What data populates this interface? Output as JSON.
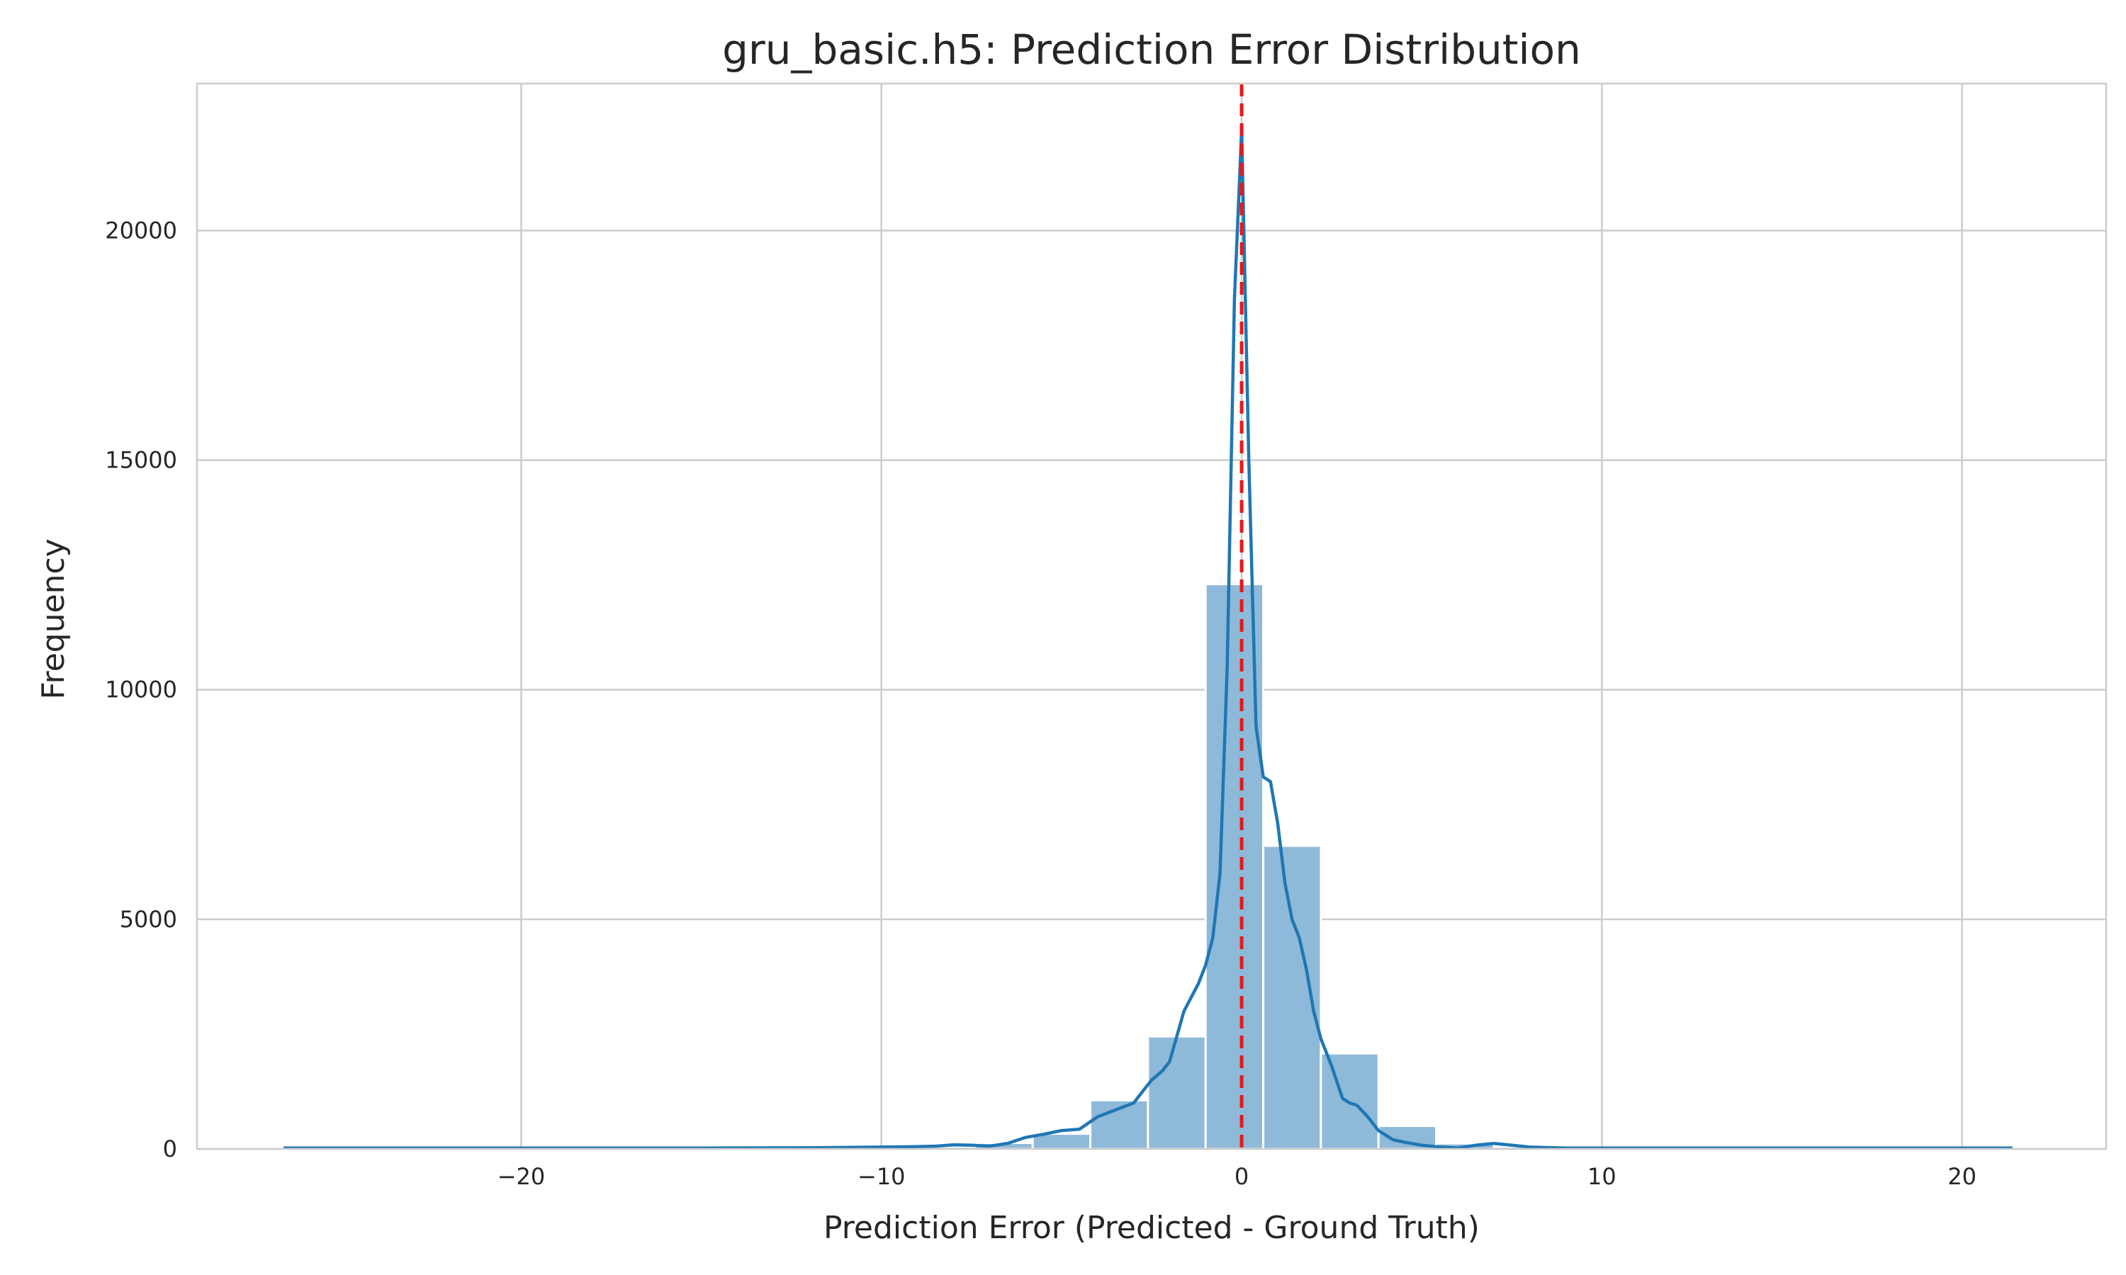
{
  "chart_data": {
    "type": "bar",
    "title": "gru_basic.h5: Prediction Error Distribution",
    "xlabel": "Prediction Error (Predicted - Ground Truth)",
    "ylabel": "Frequency",
    "xlim": [
      -29,
      24
    ],
    "ylim": [
      0,
      23200
    ],
    "grid": true,
    "xticks": [
      {
        "value": -20,
        "label": "−20"
      },
      {
        "value": -10,
        "label": "−10"
      },
      {
        "value": 0,
        "label": "0"
      },
      {
        "value": 10,
        "label": "10"
      },
      {
        "value": 20,
        "label": "20"
      }
    ],
    "yticks": [
      {
        "value": 0,
        "label": "0"
      },
      {
        "value": 5000,
        "label": "5000"
      },
      {
        "value": 10000,
        "label": "10000"
      },
      {
        "value": 15000,
        "label": "15000"
      },
      {
        "value": 20000,
        "label": "20000"
      }
    ],
    "bins": [
      {
        "x0": -26.6,
        "x1": -25.0,
        "count": 3
      },
      {
        "x0": -25.0,
        "x1": -23.4,
        "count": 3
      },
      {
        "x0": -23.4,
        "x1": -21.8,
        "count": 3
      },
      {
        "x0": -21.8,
        "x1": -20.2,
        "count": 4
      },
      {
        "x0": -20.2,
        "x1": -18.6,
        "count": 4
      },
      {
        "x0": -18.6,
        "x1": -17.0,
        "count": 5
      },
      {
        "x0": -17.0,
        "x1": -15.4,
        "count": 6
      },
      {
        "x0": -15.4,
        "x1": -13.8,
        "count": 8
      },
      {
        "x0": -13.8,
        "x1": -12.2,
        "count": 10
      },
      {
        "x0": -12.2,
        "x1": -10.6,
        "count": 15
      },
      {
        "x0": -10.6,
        "x1": -9.0,
        "count": 25
      },
      {
        "x0": -9.0,
        "x1": -7.4,
        "count": 50
      },
      {
        "x0": -7.4,
        "x1": -5.8,
        "count": 130
      },
      {
        "x0": -5.8,
        "x1": -4.2,
        "count": 330
      },
      {
        "x0": -4.2,
        "x1": -2.6,
        "count": 1060
      },
      {
        "x0": -2.6,
        "x1": -1.0,
        "count": 2450
      },
      {
        "x0": -1.0,
        "x1": 0.6,
        "count": 12300
      },
      {
        "x0": 0.6,
        "x1": 2.2,
        "count": 6600
      },
      {
        "x0": 2.2,
        "x1": 3.8,
        "count": 2080
      },
      {
        "x0": 3.8,
        "x1": 5.4,
        "count": 500
      },
      {
        "x0": 5.4,
        "x1": 7.0,
        "count": 120
      },
      {
        "x0": 7.0,
        "x1": 8.6,
        "count": 50
      },
      {
        "x0": 8.6,
        "x1": 10.2,
        "count": 20
      },
      {
        "x0": 10.2,
        "x1": 11.8,
        "count": 12
      },
      {
        "x0": 11.8,
        "x1": 13.4,
        "count": 8
      },
      {
        "x0": 13.4,
        "x1": 15.0,
        "count": 6
      },
      {
        "x0": 15.0,
        "x1": 16.6,
        "count": 5
      },
      {
        "x0": 16.6,
        "x1": 18.2,
        "count": 4
      },
      {
        "x0": 18.2,
        "x1": 19.8,
        "count": 4
      },
      {
        "x0": 19.8,
        "x1": 21.4,
        "count": 3
      }
    ],
    "kde": {
      "x": [
        -26.6,
        -20,
        -15,
        -12,
        -10,
        -9,
        -8.5,
        -8,
        -7.5,
        -7,
        -6.5,
        -6,
        -5.5,
        -5,
        -4.5,
        -4,
        -3.5,
        -3,
        -2.7,
        -2.5,
        -2.2,
        -2,
        -1.6,
        -1.2,
        -1,
        -0.8,
        -0.6,
        -0.4,
        -0.2,
        0,
        0.2,
        0.4,
        0.6,
        0.8,
        1.0,
        1.2,
        1.4,
        1.6,
        1.8,
        2.0,
        2.2,
        2.5,
        2.8,
        3.0,
        3.2,
        3.5,
        3.8,
        4.0,
        4.2,
        4.5,
        5.0,
        5.5,
        6.0,
        6.5,
        7.0,
        7.5,
        8.0,
        8.5,
        9.0,
        10,
        12,
        15,
        18,
        21.4
      ],
      "y": [
        20,
        20,
        20,
        25,
        40,
        50,
        60,
        90,
        80,
        60,
        120,
        250,
        320,
        400,
        430,
        700,
        850,
        1000,
        1300,
        1500,
        1700,
        1900,
        3000,
        3600,
        4000,
        4600,
        6000,
        10500,
        18500,
        22200,
        15000,
        9200,
        8100,
        8000,
        7100,
        5800,
        5000,
        4600,
        3900,
        3000,
        2400,
        1800,
        1100,
        1000,
        950,
        700,
        400,
        300,
        200,
        150,
        80,
        40,
        20,
        80,
        120,
        80,
        40,
        30,
        20,
        20,
        20,
        20,
        20,
        20
      ]
    },
    "reference_line": {
      "x": 0,
      "color": "#e31a1c",
      "style": "dashed"
    },
    "colors": {
      "bar_fill": "#8fb9d9",
      "kde_line": "#1f77b4",
      "grid": "#cccccc",
      "background": "#ffffff",
      "text": "#262626"
    }
  }
}
